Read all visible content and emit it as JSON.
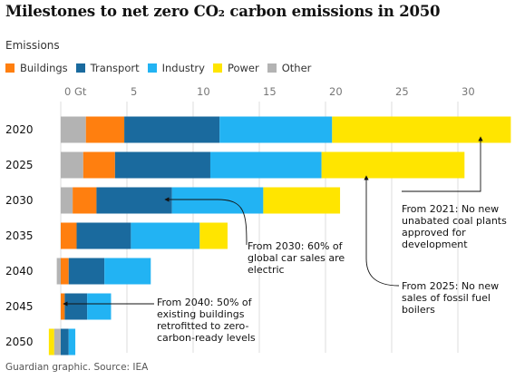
{
  "chart_data": {
    "type": "bar",
    "orientation": "horizontal",
    "stacked": true,
    "title": "Milestones to net zero CO₂ carbon emissions in 2050",
    "ylabel": "Emissions",
    "x_unit_label": "0 Gt",
    "x_ticks": [
      "0 Gt",
      "5",
      "10",
      "15",
      "20",
      "25",
      "30"
    ],
    "xlim": [
      0,
      34
    ],
    "grid": true,
    "legend_position": "top-left",
    "categories": [
      "2020",
      "2025",
      "2030",
      "2035",
      "2040",
      "2045",
      "2050"
    ],
    "series": [
      {
        "name": "Other",
        "color": "#b3b3b3",
        "values": [
          1.9,
          1.7,
          0.9,
          0.0,
          -0.3,
          0.0,
          -0.5
        ]
      },
      {
        "name": "Buildings",
        "color": "#ff7f0f",
        "values": [
          2.9,
          2.4,
          1.8,
          1.2,
          0.6,
          0.3,
          0.0
        ]
      },
      {
        "name": "Transport",
        "color": "#1a6a9e",
        "values": [
          7.2,
          7.2,
          5.7,
          4.1,
          2.7,
          1.7,
          0.6
        ]
      },
      {
        "name": "Industry",
        "color": "#22b3f3",
        "values": [
          8.5,
          8.4,
          6.9,
          5.2,
          3.5,
          1.8,
          0.5
        ]
      },
      {
        "name": "Power",
        "color": "#ffe500",
        "values": [
          13.5,
          10.8,
          5.8,
          2.1,
          0.0,
          0.0,
          -0.4
        ]
      }
    ],
    "legend_order": [
      "Buildings",
      "Transport",
      "Industry",
      "Power",
      "Other"
    ],
    "annotations": [
      {
        "lines": [
          "From 2021: No new",
          "unabated coal plants",
          "approved for",
          "development"
        ]
      },
      {
        "lines": [
          "From 2025: No new",
          "sales of fossil fuel",
          "boilers"
        ]
      },
      {
        "lines": [
          "From 2030: 60% of",
          "global car sales are",
          "electric"
        ]
      },
      {
        "lines": [
          "From 2040: 50% of",
          "existing buildings",
          "retrofitted to zero-",
          "carbon-ready levels"
        ]
      }
    ],
    "source": "Guardian graphic. Source: IEA"
  }
}
